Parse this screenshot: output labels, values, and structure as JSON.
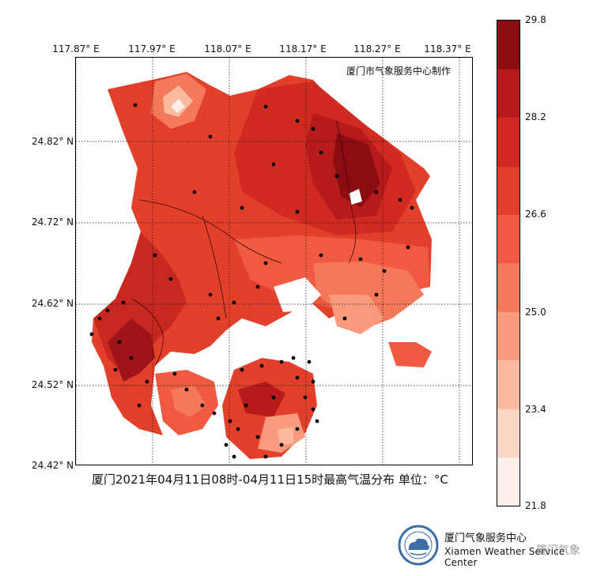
{
  "title": "厦门2021年04月11日08时-04月11日15时最高气温分布 单位：°C",
  "attribution": "厦门市气象服务中心制作",
  "lon_ticks": [
    "117.87° E",
    "117.97° E",
    "118.07° E",
    "118.17° E",
    "118.27° E",
    "118.37° E"
  ],
  "lat_ticks": [
    "24.82° N",
    "24.72° N",
    "24.62° N",
    "24.52° N",
    "24.42° N"
  ],
  "colorbar": {
    "unit": "°C",
    "min": 21.8,
    "max": 29.8,
    "tick_labels": [
      "29.8",
      "28.2",
      "26.6",
      "25.0",
      "23.4",
      "21.8"
    ],
    "levels": [
      21.8,
      22.6,
      23.4,
      24.2,
      25.0,
      25.8,
      26.6,
      27.4,
      28.2,
      29.0,
      29.8
    ],
    "colors": [
      "#fdeee8",
      "#fcd5c5",
      "#fbb9a0",
      "#f89a7b",
      "#f4785a",
      "#ef5a40",
      "#e3402c",
      "#d12b21",
      "#b71a1a",
      "#8b0d12"
    ]
  },
  "footer": {
    "org_cn": "厦门气象服务中心",
    "org_en": "Xiamen Weather Service Center",
    "watermark": "厦门气象"
  }
}
